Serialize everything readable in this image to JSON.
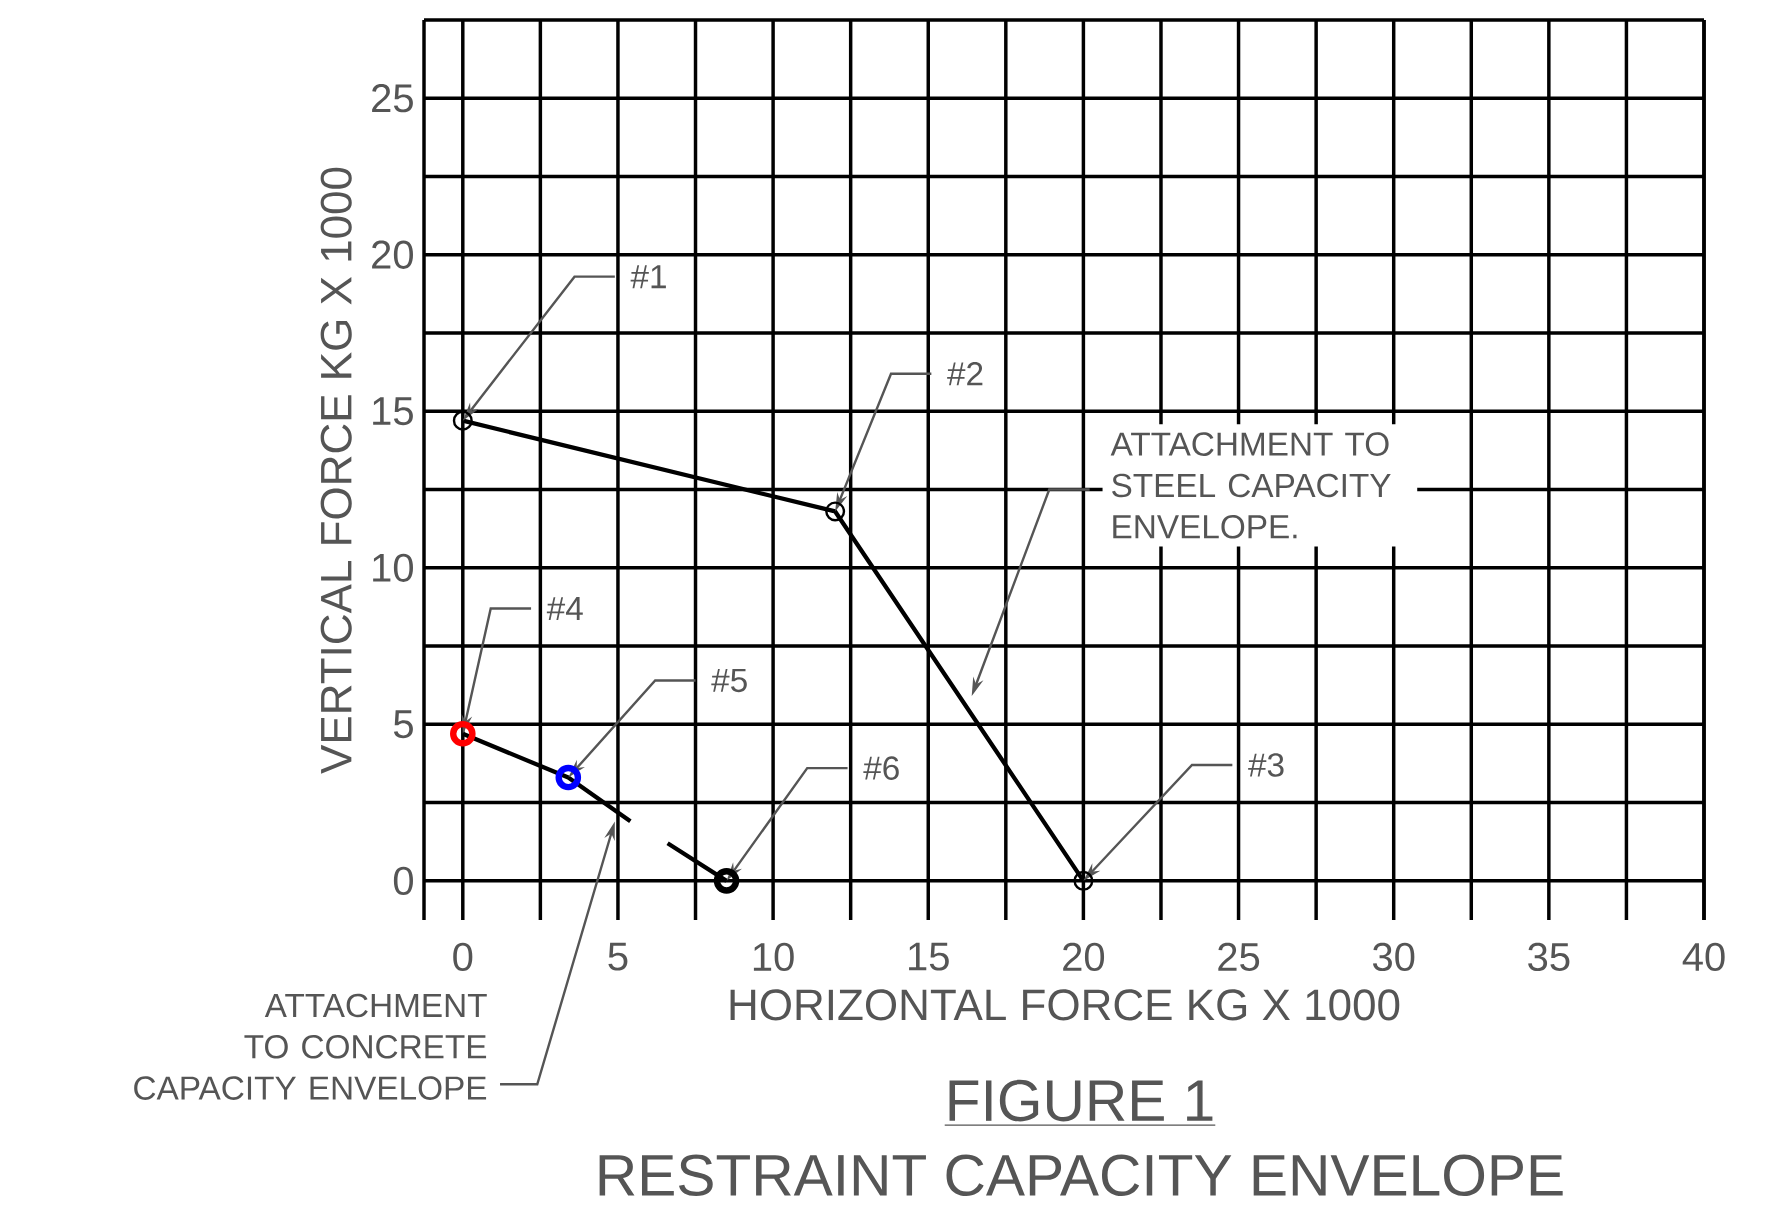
{
  "chart_data": {
    "type": "line",
    "title": "FIGURE 1",
    "subtitle": "RESTRAINT CAPACITY ENVELOPE",
    "xlabel": "HORIZONTAL FORCE KG X 1000",
    "ylabel": "VERTICAL FORCE KG X 1000",
    "xlim": [
      -1.25,
      40
    ],
    "ylim": [
      -1.25,
      27.5
    ],
    "xticks": [
      0,
      {
        "value": 2.5,
        "label": null
      },
      5,
      {
        "value": 7.5,
        "label": null
      },
      10,
      {
        "value": 12.5,
        "label": null
      },
      15,
      {
        "value": 17.5,
        "label": null
      },
      20,
      {
        "value": 22.5,
        "label": null
      },
      25,
      {
        "value": 27.5,
        "label": null
      },
      30,
      {
        "value": 32.5,
        "label": null
      },
      35,
      {
        "value": 37.5,
        "label": null
      },
      40
    ],
    "yticks": [
      0,
      {
        "value": 2.5,
        "label": null
      },
      5,
      {
        "value": 7.5,
        "label": null
      },
      10,
      {
        "value": 12.5,
        "label": null
      },
      15,
      {
        "value": 17.5,
        "label": null
      },
      20,
      {
        "value": 22.5,
        "label": null
      },
      25,
      {
        "value": 27.5,
        "label": null
      }
    ],
    "grid": true,
    "series": [
      {
        "type": "line",
        "color": "#000000",
        "marker": "circle",
        "x": [
          0,
          12,
          20
        ],
        "values": [
          14.7,
          11.8,
          0
        ]
      },
      {
        "type": "line",
        "color": "#000000",
        "marker": "none",
        "x": [
          0,
          3.4,
          5.4,
          6,
          6.6,
          8.5
        ],
        "values": [
          4.7,
          3.3,
          1.9,
          null,
          1.2,
          0
        ]
      },
      {
        "type": "scatter",
        "marker": "circle",
        "x": [
          0,
          3.4,
          8.5
        ],
        "values": [
          4.7,
          3.3,
          0
        ],
        "colors": [
          "#ff0000",
          "#0000ff",
          "#000000"
        ]
      }
    ],
    "annotations": [
      {
        "text": "#1",
        "x": 0,
        "y": 14.7
      },
      {
        "text": "#2",
        "x": 12,
        "y": 11.8
      },
      {
        "text": "#3",
        "x": 20,
        "y": 0
      },
      {
        "text": "#4",
        "x": 0,
        "y": 4.7
      },
      {
        "text": "#5",
        "x": 3.4,
        "y": 3.3
      },
      {
        "text": "#6",
        "x": 8.5,
        "y": 0
      },
      {
        "text": "ATTACHMENT TO STEEL CAPACITY ENVELOPE.",
        "x": 16.4,
        "y": 5.9
      },
      {
        "text": "ATTACHMENT TO CONCRETE CAPACITY ENVELOPE",
        "x": 4.9,
        "y": 1.9
      }
    ]
  }
}
